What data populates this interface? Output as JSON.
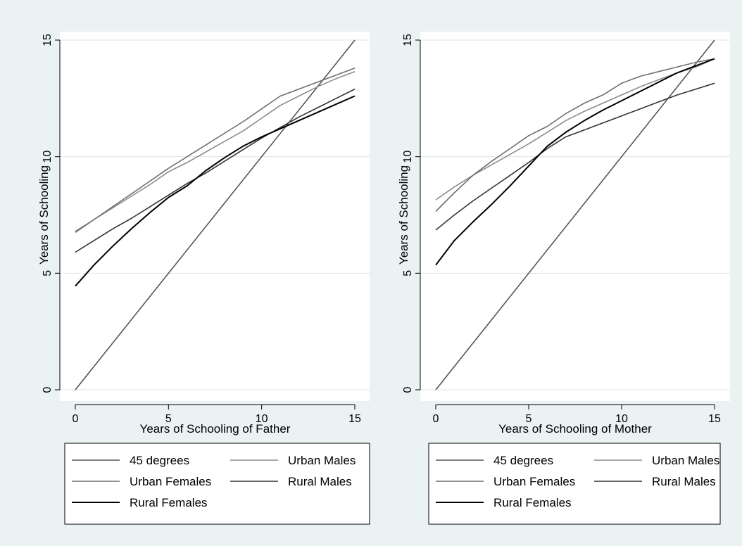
{
  "colors": {
    "background": "#eaf2f3",
    "plot_background": "#ffffff",
    "grid": "#dfe5e6",
    "series": [
      "#555555",
      "#8c8c8c",
      "#6f6f6f",
      "#333333",
      "#000000"
    ]
  },
  "chart_data": [
    {
      "type": "line",
      "xlabel": "Years of Schooling of Father",
      "ylabel": "Years of Schooling",
      "xlim": [
        0,
        15
      ],
      "ylim": [
        0,
        15
      ],
      "xticks": [
        0,
        5,
        10,
        15
      ],
      "yticks": [
        0,
        5,
        10,
        15
      ],
      "grid": true,
      "legend_position": "bottom",
      "series": [
        {
          "name": "45 degrees",
          "x": [
            0,
            15
          ],
          "y": [
            0,
            15
          ]
        },
        {
          "name": "Urban Males",
          "x": [
            0,
            1,
            2,
            3,
            4,
            5,
            6,
            7,
            8,
            9,
            10,
            11,
            12,
            13,
            14,
            15
          ],
          "y": [
            6.8,
            7.3,
            7.8,
            8.3,
            8.8,
            9.35,
            9.75,
            10.2,
            10.65,
            11.1,
            11.65,
            12.2,
            12.6,
            13.0,
            13.35,
            13.65
          ]
        },
        {
          "name": "Urban Females",
          "x": [
            0,
            1,
            2,
            3,
            4,
            5,
            6,
            7,
            8,
            9,
            10,
            11,
            12,
            13,
            14,
            15
          ],
          "y": [
            6.75,
            7.3,
            7.85,
            8.4,
            8.95,
            9.5,
            10.0,
            10.5,
            11.0,
            11.5,
            12.05,
            12.6,
            12.9,
            13.2,
            13.5,
            13.8
          ]
        },
        {
          "name": "Rural Males",
          "x": [
            0,
            1,
            2,
            3,
            4,
            5,
            6,
            7,
            8,
            9,
            10,
            11,
            12,
            13,
            14,
            15
          ],
          "y": [
            5.9,
            6.4,
            6.9,
            7.35,
            7.85,
            8.35,
            8.85,
            9.3,
            9.8,
            10.3,
            10.8,
            11.25,
            11.7,
            12.1,
            12.5,
            12.9
          ]
        },
        {
          "name": "Rural Females",
          "x": [
            0,
            1,
            2,
            3,
            4,
            5,
            6,
            7,
            8,
            9,
            10,
            11,
            12,
            13,
            14,
            15
          ],
          "y": [
            4.45,
            5.35,
            6.15,
            6.9,
            7.6,
            8.25,
            8.75,
            9.4,
            9.95,
            10.45,
            10.85,
            11.2,
            11.55,
            11.9,
            12.25,
            12.6
          ]
        }
      ],
      "legend": [
        "45 degrees",
        "Urban Males",
        "Urban Females",
        "Rural Males",
        "Rural Females"
      ]
    },
    {
      "type": "line",
      "xlabel": "Years of Schooling of Mother",
      "ylabel": "Years of Schooling",
      "xlim": [
        0,
        15
      ],
      "ylim": [
        0,
        15
      ],
      "xticks": [
        0,
        5,
        10,
        15
      ],
      "yticks": [
        0,
        5,
        10,
        15
      ],
      "grid": true,
      "legend_position": "bottom",
      "series": [
        {
          "name": "45 degrees",
          "x": [
            0,
            15
          ],
          "y": [
            0,
            15
          ]
        },
        {
          "name": "Urban Males",
          "x": [
            0,
            1,
            2,
            3,
            4,
            5,
            6,
            7,
            8,
            9,
            10,
            11,
            12,
            13,
            14,
            15
          ],
          "y": [
            8.15,
            8.7,
            9.2,
            9.65,
            10.1,
            10.55,
            11.05,
            11.55,
            11.95,
            12.3,
            12.65,
            13.0,
            13.3,
            13.6,
            13.85,
            14.2
          ]
        },
        {
          "name": "Urban Females",
          "x": [
            0,
            1,
            2,
            3,
            4,
            5,
            6,
            7,
            8,
            9,
            10,
            11,
            12,
            13,
            14,
            15
          ],
          "y": [
            7.65,
            8.45,
            9.2,
            9.8,
            10.35,
            10.9,
            11.3,
            11.85,
            12.3,
            12.65,
            13.15,
            13.45,
            13.65,
            13.85,
            14.05,
            14.2
          ]
        },
        {
          "name": "Rural Males",
          "x": [
            0,
            1,
            2,
            3,
            4,
            5,
            6,
            7,
            8,
            9,
            10,
            11,
            12,
            13,
            14,
            15
          ],
          "y": [
            6.85,
            7.5,
            8.1,
            8.65,
            9.2,
            9.75,
            10.35,
            10.85,
            11.15,
            11.45,
            11.75,
            12.05,
            12.35,
            12.65,
            12.9,
            13.15
          ]
        },
        {
          "name": "Rural Females",
          "x": [
            0,
            1,
            2,
            3,
            4,
            5,
            6,
            7,
            8,
            9,
            10,
            11,
            12,
            13,
            14,
            15
          ],
          "y": [
            5.35,
            6.4,
            7.2,
            7.95,
            8.75,
            9.6,
            10.45,
            11.05,
            11.55,
            12.0,
            12.4,
            12.8,
            13.2,
            13.6,
            13.9,
            14.2
          ]
        }
      ],
      "legend": [
        "45 degrees",
        "Urban Males",
        "Urban Females",
        "Rural Males",
        "Rural Females"
      ]
    }
  ]
}
